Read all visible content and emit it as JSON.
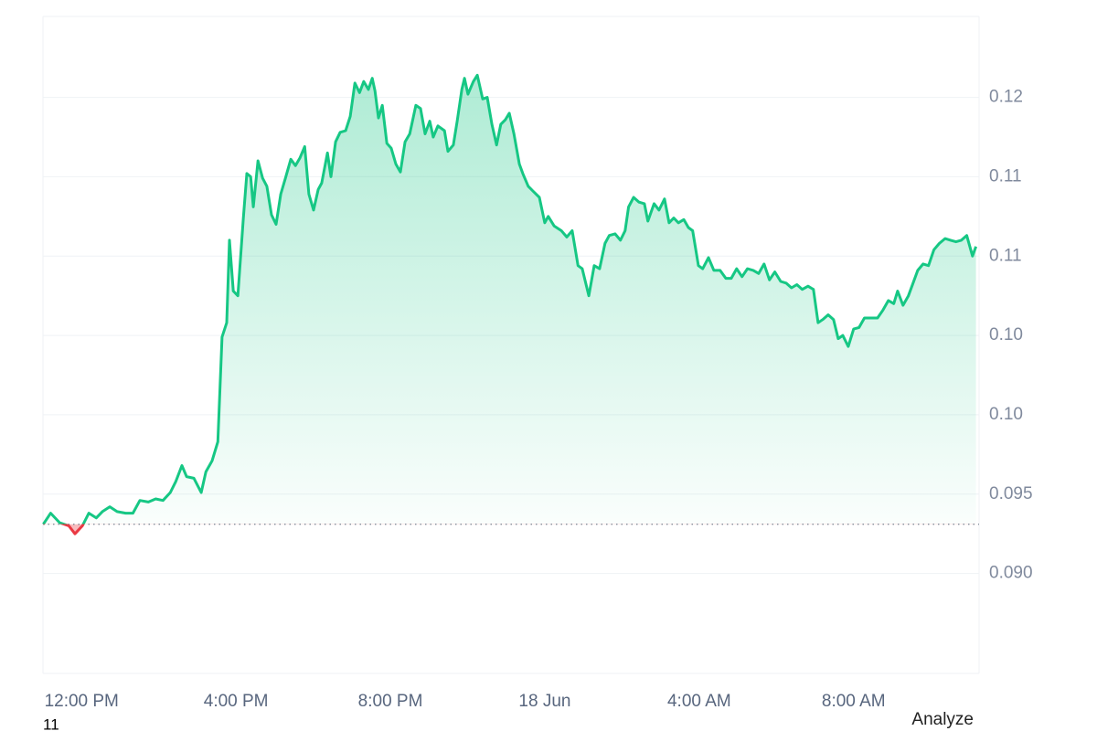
{
  "chart_data": {
    "type": "line",
    "x": [
      -0.99,
      -0.8,
      -0.57,
      -0.33,
      -0.17,
      0.02,
      0.19,
      0.38,
      0.54,
      0.73,
      0.92,
      1.14,
      1.33,
      1.51,
      1.73,
      1.92,
      2.11,
      2.3,
      2.44,
      2.6,
      2.72,
      2.91,
      3.1,
      3.22,
      3.38,
      3.53,
      3.64,
      3.76,
      3.83,
      3.93,
      4.05,
      4.19,
      4.28,
      4.38,
      4.45,
      4.57,
      4.69,
      4.8,
      4.92,
      5.04,
      5.16,
      5.28,
      5.42,
      5.54,
      5.66,
      5.78,
      5.89,
      6.01,
      6.13,
      6.22,
      6.37,
      6.46,
      6.58,
      6.7,
      6.84,
      6.96,
      7.08,
      7.2,
      7.31,
      7.43,
      7.53,
      7.6,
      7.69,
      7.79,
      7.91,
      8.02,
      8.14,
      8.26,
      8.38,
      8.5,
      8.66,
      8.78,
      8.9,
      9.02,
      9.11,
      9.23,
      9.4,
      9.49,
      9.63,
      9.73,
      9.85,
      9.92,
      10.01,
      10.15,
      10.25,
      10.39,
      10.51,
      10.63,
      10.75,
      10.86,
      10.98,
      11.08,
      11.2,
      11.34,
      11.43,
      11.57,
      11.69,
      11.86,
      12.0,
      12.09,
      12.24,
      12.43,
      12.57,
      12.71,
      12.86,
      12.97,
      13.14,
      13.28,
      13.42,
      13.56,
      13.67,
      13.82,
      13.96,
      14.08,
      14.17,
      14.3,
      14.44,
      14.58,
      14.67,
      14.83,
      14.96,
      15.1,
      15.22,
      15.34,
      15.46,
      15.6,
      15.72,
      15.83,
      15.98,
      16.09,
      16.24,
      16.38,
      16.54,
      16.69,
      16.83,
      16.97,
      17.11,
      17.25,
      17.4,
      17.54,
      17.68,
      17.82,
      17.96,
      18.11,
      18.25,
      18.39,
      18.53,
      18.67,
      18.82,
      18.96,
      19.08,
      19.2,
      19.34,
      19.48,
      19.6,
      19.72,
      19.86,
      20.0,
      20.14,
      20.28,
      20.47,
      20.62,
      20.76,
      20.9,
      21.04,
      21.14,
      21.28,
      21.42,
      21.54,
      21.66,
      21.8,
      21.94,
      22.08,
      22.22,
      22.37,
      22.51,
      22.65,
      22.79,
      22.93,
      23.08,
      23.17
    ],
    "series": [
      {
        "color": "#16c784",
        "below_color": "#ea3943",
        "values": [
          0.0931,
          0.0938,
          0.0932,
          0.093,
          0.0925,
          0.093,
          0.0938,
          0.0935,
          0.0939,
          0.0942,
          0.0939,
          0.0938,
          0.0938,
          0.0946,
          0.0945,
          0.0947,
          0.0946,
          0.0951,
          0.0958,
          0.0968,
          0.0961,
          0.096,
          0.0951,
          0.0964,
          0.0971,
          0.0983,
          0.1049,
          0.1058,
          0.111,
          0.1078,
          0.1075,
          0.1124,
          0.1152,
          0.115,
          0.1131,
          0.116,
          0.1149,
          0.1144,
          0.1126,
          0.112,
          0.1139,
          0.1149,
          0.1161,
          0.1157,
          0.1162,
          0.1169,
          0.1139,
          0.1129,
          0.1142,
          0.1146,
          0.1165,
          0.115,
          0.1172,
          0.1178,
          0.1179,
          0.1188,
          0.1209,
          0.1203,
          0.121,
          0.1205,
          0.1212,
          0.1204,
          0.1187,
          0.1195,
          0.1171,
          0.1168,
          0.1158,
          0.1153,
          0.1172,
          0.1177,
          0.1195,
          0.1193,
          0.1177,
          0.1185,
          0.1175,
          0.1182,
          0.1179,
          0.1166,
          0.117,
          0.1185,
          0.1205,
          0.1212,
          0.1202,
          0.121,
          0.1214,
          0.1199,
          0.12,
          0.1183,
          0.117,
          0.1183,
          0.1186,
          0.119,
          0.1177,
          0.1158,
          0.1152,
          0.1144,
          0.1141,
          0.1137,
          0.1121,
          0.1125,
          0.1119,
          0.1116,
          0.1112,
          0.1116,
          0.1094,
          0.1092,
          0.1075,
          0.1094,
          0.1092,
          0.1108,
          0.1113,
          0.1114,
          0.111,
          0.1116,
          0.1131,
          0.1137,
          0.1134,
          0.1133,
          0.1122,
          0.1133,
          0.1129,
          0.1136,
          0.1121,
          0.1124,
          0.1121,
          0.1123,
          0.1118,
          0.1116,
          0.1094,
          0.1092,
          0.1099,
          0.1091,
          0.1091,
          0.1086,
          0.1086,
          0.1092,
          0.1087,
          0.1092,
          0.1091,
          0.1089,
          0.1095,
          0.1085,
          0.109,
          0.1084,
          0.1083,
          0.108,
          0.1082,
          0.1079,
          0.1081,
          0.1079,
          0.1058,
          0.106,
          0.1063,
          0.106,
          0.1048,
          0.105,
          0.1043,
          0.1054,
          0.1055,
          0.1061,
          0.1061,
          0.1061,
          0.1066,
          0.1072,
          0.107,
          0.1078,
          0.1069,
          0.1075,
          0.1083,
          0.1091,
          0.1095,
          0.1094,
          0.1104,
          0.1108,
          0.1111,
          0.111,
          0.1109,
          0.111,
          0.1113,
          0.11,
          0.1106
        ]
      }
    ],
    "baseline": 0.0931,
    "xlim": [
      -1,
      23.25
    ],
    "xticks": [
      {
        "value": 0,
        "label": "12:00 PM"
      },
      {
        "value": 4,
        "label": "4:00 PM"
      },
      {
        "value": 8,
        "label": "8:00 PM"
      },
      {
        "value": 12,
        "label": "18 Jun"
      },
      {
        "value": 16,
        "label": "4:00 AM"
      },
      {
        "value": 20,
        "label": "8:00 AM"
      }
    ],
    "ylim": [
      0.0837,
      0.1251
    ],
    "yticks": [
      {
        "value": 0.09,
        "label": "0.090"
      },
      0.095,
      {
        "value": 0.1,
        "label": "0.10"
      },
      {
        "value": 0.105,
        "label": "0.10"
      },
      0.11,
      {
        "value": 0.115,
        "label": "0.11"
      },
      0.12
    ],
    "grid": true
  },
  "footer_left": "11",
  "footer_right": "Analyze"
}
